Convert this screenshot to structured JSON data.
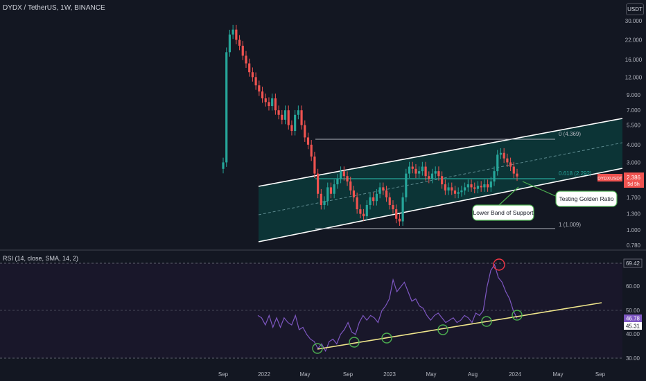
{
  "header": {
    "symbol_line": "DYDX / TetherUS, 1W, BINANCE",
    "currency_badge": "USDT"
  },
  "rsi": {
    "title": "RSI (14, close, SMA, 14, 2)",
    "levels": [
      70,
      30
    ],
    "ticks": [
      "60.00",
      "50.00",
      "40.00",
      "30.00"
    ],
    "label_value": "69.42",
    "label_rsi": "46.78",
    "label_sma": "45.31"
  },
  "annotations": {
    "fib_top": "0 (4.369)",
    "fib_golden": "0.618 (2.292)",
    "fib_bottom": "1 (1.009)",
    "callout_golden": "Testing Golden Ratio",
    "callout_support": "Lower Band of Support",
    "price_label_ticker": "DYDXUSDT",
    "price_label_value": "2.386",
    "price_label_time": "5d 5h"
  },
  "colors": {
    "background": "#131722",
    "up": "#26a69a",
    "down": "#ef5350",
    "channel_fill": "#0d3b3b",
    "rsi_line": "#7e57c2",
    "trendline": "#f0e68c",
    "circle_green": "#4caf50",
    "circle_red": "#f23645"
  },
  "chart_data": [
    {
      "type": "candlestick",
      "title": "DYDX / TetherUS, 1W, BINANCE",
      "scale": "log",
      "y_ticks": [
        "30.000",
        "22.000",
        "16.000",
        "12.000",
        "9.000",
        "7.000",
        "5.500",
        "4.000",
        "3.000",
        "2.386",
        "1.700",
        "1.300",
        "1.000",
        "0.780"
      ],
      "x_ticks": [
        "Sep",
        "2022",
        "May",
        "Sep",
        "2023",
        "May",
        "Aug",
        "2024",
        "May",
        "Sep"
      ],
      "series": [
        {
          "name": "DYDXUSDT",
          "close": [
            3.0,
            18.0,
            24.0,
            26.0,
            22.0,
            20.0,
            17.0,
            15.0,
            13.0,
            12.0,
            10.5,
            9.5,
            8.5,
            8.0,
            7.5,
            8.5,
            7.0,
            6.5,
            6.0,
            7.0,
            5.5,
            5.0,
            6.5,
            7.0,
            5.5,
            4.5,
            4.0,
            3.3,
            2.5,
            1.8,
            1.5,
            1.6,
            2.0,
            1.8,
            2.1,
            2.3,
            2.6,
            2.4,
            2.2,
            1.9,
            1.7,
            1.4,
            1.3,
            1.25,
            1.5,
            1.7,
            1.6,
            1.8,
            2.0,
            1.9,
            1.7,
            1.5,
            1.4,
            1.2,
            1.15,
            1.7,
            2.5,
            2.8,
            2.7,
            2.5,
            2.6,
            2.8,
            2.4,
            2.3,
            2.5,
            2.6,
            2.4,
            2.1,
            1.9,
            2.0,
            1.9,
            1.8,
            1.85,
            1.9,
            2.0,
            2.1,
            2.0,
            1.95,
            2.05,
            2.0,
            2.1,
            2.0,
            2.2,
            2.6,
            3.4,
            3.5,
            3.2,
            3.0,
            2.8,
            2.5,
            2.386
          ]
        }
      ]
    },
    {
      "type": "line",
      "title": "RSI (14, close, SMA, 14, 2)",
      "ylim": [
        30,
        70
      ],
      "series": [
        {
          "name": "RSI",
          "values": [
            48,
            47,
            44,
            48,
            43,
            47,
            43,
            47,
            45,
            44,
            48,
            42,
            43,
            40,
            38,
            37,
            34,
            36,
            33,
            37,
            38,
            36,
            40,
            42,
            45,
            41,
            40,
            45,
            48,
            46,
            48,
            47,
            45,
            50,
            52,
            55,
            63,
            58,
            60,
            62,
            58,
            54,
            55,
            52,
            51,
            48,
            46,
            48,
            49,
            47,
            45,
            46,
            47,
            45,
            46,
            48,
            47,
            45,
            49,
            48,
            50,
            60,
            67,
            69.42,
            64,
            62,
            58,
            55,
            50,
            46.78
          ]
        }
      ]
    }
  ]
}
